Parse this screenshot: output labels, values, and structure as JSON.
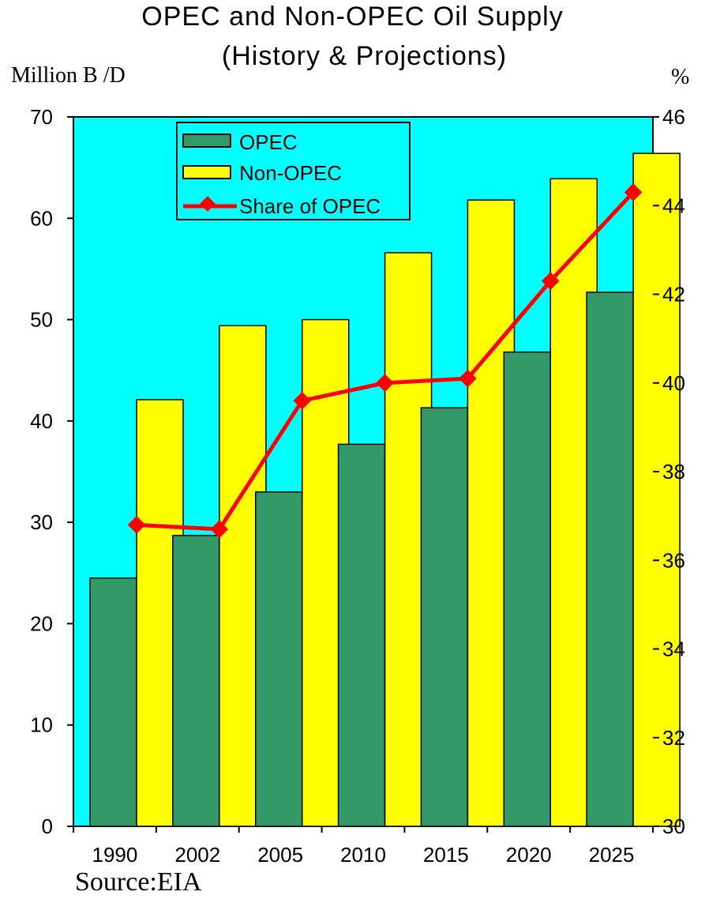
{
  "chart_data": {
    "type": "bar",
    "title": "OPEC and Non-OPEC Oil Supply",
    "subtitle": "(History & Projections)",
    "ylabel_left": "Million B /D",
    "ylabel_right": "%",
    "source": "Source:EIA",
    "categories": [
      "1990",
      "2002",
      "2005",
      "2010",
      "2015",
      "2020",
      "2025"
    ],
    "series": [
      {
        "name": "OPEC",
        "type": "bar",
        "axis": "left",
        "color": "#339966",
        "values": [
          24.5,
          28.7,
          33.0,
          37.7,
          41.3,
          46.8,
          52.7
        ]
      },
      {
        "name": "Non-OPEC",
        "type": "bar",
        "axis": "left",
        "color": "#ffff00",
        "values": [
          42.1,
          49.4,
          50.0,
          56.6,
          61.8,
          63.9,
          66.4
        ]
      },
      {
        "name": "Share of OPEC",
        "type": "line",
        "axis": "right",
        "color": "#ff0000",
        "values": [
          36.8,
          36.7,
          39.6,
          40.0,
          40.1,
          42.3,
          44.3
        ]
      }
    ],
    "ylim_left": [
      0,
      70
    ],
    "yticks_left": [
      "0",
      "10",
      "20",
      "30",
      "40",
      "50",
      "60",
      "70"
    ],
    "ylim_right": [
      30,
      46
    ],
    "yticks_right": [
      "30",
      "32",
      "34",
      "36",
      "38",
      "40",
      "42",
      "44",
      "46"
    ],
    "plot_background": "#00ffff",
    "grid": false,
    "legend_position": "top-left"
  }
}
